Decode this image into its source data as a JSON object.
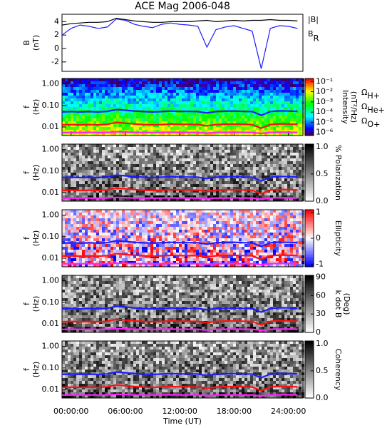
{
  "chart_data": [
    {
      "type": "line",
      "title": "ACE Mag 2006-048",
      "ylabel": [
        "B",
        "(nT)"
      ],
      "x": [
        -1,
        0,
        1,
        2,
        3,
        4,
        5,
        6,
        7,
        8,
        9,
        10,
        11,
        12,
        13,
        14,
        15,
        16,
        17,
        18,
        19,
        20,
        21,
        22,
        23,
        24,
        25
      ],
      "xlim": [
        -1,
        25.6
      ],
      "ylim": [
        -3.4,
        5.1
      ],
      "yticks": [
        -2,
        0,
        2,
        4
      ],
      "series": [
        {
          "name": "|B|",
          "color": "#000000",
          "values": [
            3.5,
            3.7,
            3.8,
            3.9,
            3.9,
            4.0,
            4.5,
            4.3,
            4.1,
            4.0,
            3.9,
            3.9,
            4.0,
            4.0,
            4.0,
            4.1,
            4.2,
            4.0,
            4.1,
            4.2,
            4.1,
            4.2,
            4.2,
            4.3,
            4.2,
            4.2,
            4.1
          ]
        },
        {
          "name": "BR",
          "color": "#1c1cff",
          "values": [
            2.0,
            3.0,
            3.5,
            3.3,
            3.0,
            3.2,
            4.4,
            4.2,
            3.6,
            3.3,
            3.1,
            3.6,
            3.8,
            3.6,
            3.5,
            3.3,
            0.2,
            2.8,
            3.2,
            3.4,
            3.0,
            2.6,
            -3.0,
            3.0,
            3.4,
            3.3,
            3.0
          ]
        }
      ]
    },
    {
      "type": "spectrogram",
      "ylabel": [
        "f",
        "(Hz)"
      ],
      "xlabel": "Time (UT)",
      "x": [
        -1,
        0,
        1,
        2,
        3,
        4,
        5,
        6,
        7,
        8,
        9,
        10,
        11,
        12,
        13,
        14,
        15,
        16,
        17,
        18,
        19,
        20,
        21,
        22,
        23,
        24,
        25
      ],
      "xlim": [
        -1,
        25.6
      ],
      "ylim": [
        0.004,
        1.8
      ],
      "log_y": true,
      "yticks": [
        {
          "value": 1,
          "label": "1.00"
        },
        {
          "value": 0.1,
          "label": "0.10"
        },
        {
          "value": 0.01,
          "label": "0.01"
        }
      ],
      "xticks": [
        {
          "value": 0,
          "label": "00:00:00"
        },
        {
          "value": 6,
          "label": "06:00:00"
        },
        {
          "value": 12,
          "label": "12:00:00"
        },
        {
          "value": 18,
          "label": "18:00:00"
        },
        {
          "value": 24,
          "label": "24:00:00"
        }
      ],
      "series": [
        {
          "name": "ΩH+",
          "color": "#1c1cff",
          "values": [
            0.05,
            0.052,
            0.05,
            0.052,
            0.05,
            0.053,
            0.065,
            0.06,
            0.055,
            0.052,
            0.05,
            0.052,
            0.055,
            0.053,
            0.053,
            0.052,
            0.045,
            0.052,
            0.054,
            0.055,
            0.053,
            0.052,
            0.035,
            0.052,
            0.056,
            0.055,
            0.053
          ]
        },
        {
          "name": "ΩHe+",
          "color": "#ff1010",
          "values": [
            0.0125,
            0.013,
            0.0125,
            0.013,
            0.0125,
            0.0133,
            0.0163,
            0.015,
            0.0138,
            0.013,
            0.0125,
            0.013,
            0.0138,
            0.0133,
            0.0133,
            0.013,
            0.0113,
            0.013,
            0.0135,
            0.0138,
            0.0133,
            0.013,
            0.0088,
            0.013,
            0.014,
            0.0138,
            0.0133
          ]
        },
        {
          "name": "ΩO+",
          "color": "#ff20ff",
          "values": [
            0.0055,
            0.0056,
            0.0055,
            0.0056,
            0.0055,
            0.0056,
            0.006,
            0.0058,
            0.0056,
            0.0056,
            0.0055,
            0.0056,
            0.0057,
            0.0056,
            0.0056,
            0.0056,
            0.0052,
            0.0056,
            0.0056,
            0.0057,
            0.0056,
            0.0056,
            0.005,
            0.0056,
            0.0057,
            0.0057,
            0.0056
          ]
        }
      ],
      "panels": [
        {
          "cmap": "rainbow",
          "clog": true,
          "clim": [
            5e-07,
            0.2
          ],
          "label": [
            "Intensity",
            "(nT²/Hz)"
          ],
          "cticks": [
            {
              "value": 0.1,
              "label": "10⁻¹"
            },
            {
              "value": 0.01,
              "label": "10⁻²"
            },
            {
              "value": 0.001,
              "label": "10⁻³"
            },
            {
              "value": 0.0001,
              "label": "10⁻⁴"
            },
            {
              "value": 1e-05,
              "label": "10⁻⁵"
            },
            {
              "value": 1e-06,
              "label": "10⁻⁶"
            }
          ]
        },
        {
          "cmap": "gray",
          "clim": [
            0,
            1.05
          ],
          "label": [
            "% Polarization"
          ],
          "cticks": [
            {
              "value": 0,
              "label": "0.0"
            },
            {
              "value": 0.5,
              "label": "0.5"
            },
            {
              "value": 1,
              "label": "1.0"
            }
          ]
        },
        {
          "cmap": "bwr",
          "clim": [
            -1.1,
            1.1
          ],
          "label": [
            "Ellipticity"
          ],
          "cticks": [
            -1,
            0,
            1
          ]
        },
        {
          "cmap": "gray",
          "clim": [
            0,
            93
          ],
          "label": [
            "k dot B",
            "(Deg)"
          ],
          "cticks": [
            0,
            30,
            60,
            90
          ]
        },
        {
          "cmap": "gray",
          "clim": [
            0,
            1.05
          ],
          "label": [
            "Coherency"
          ],
          "cticks": [
            {
              "value": 0,
              "label": "0.0"
            },
            {
              "value": 0.5,
              "label": "0.5"
            },
            {
              "value": 1,
              "label": "1.0"
            }
          ]
        }
      ]
    }
  ]
}
